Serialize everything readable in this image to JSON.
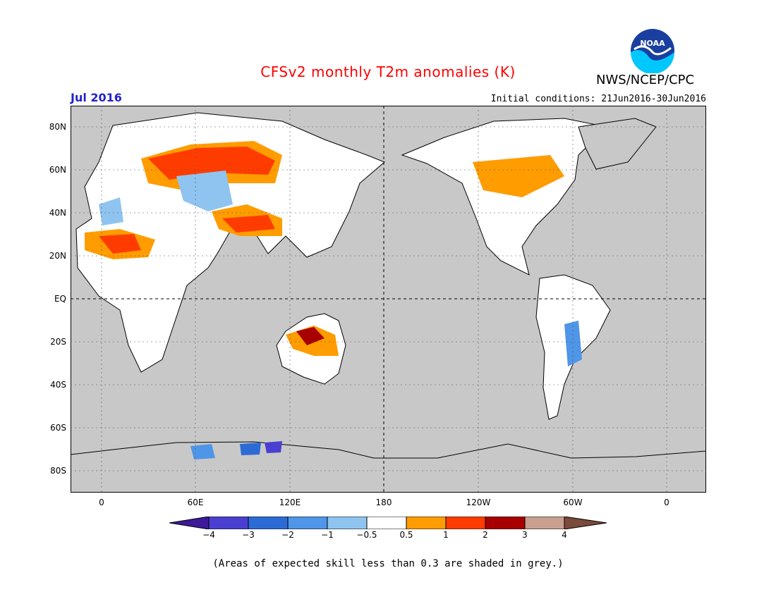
{
  "title": "CFSv2 monthly T2m anomalies (K)",
  "agency": "NWS/NCEP/CPC",
  "logo_text": "NOAA",
  "month": "Jul 2016",
  "initial_conditions": "Initial conditions: 21Jun2016-30Jun2016",
  "lat_labels": [
    "80N",
    "60N",
    "40N",
    "20N",
    "EQ",
    "20S",
    "40S",
    "60S",
    "80S"
  ],
  "lon_labels": [
    "0",
    "60E",
    "120E",
    "180",
    "120W",
    "60W",
    "0"
  ],
  "colorbar": {
    "labels": [
      "−4",
      "−3",
      "−2",
      "−1",
      "−0.5",
      "0.5",
      "1",
      "2",
      "3",
      "4"
    ],
    "colors": [
      "#3c1a9a",
      "#4a3fd0",
      "#2c6bd6",
      "#4f95e8",
      "#8fc4f0",
      "#ffffff",
      "#ff9c00",
      "#ff3c00",
      "#a80000",
      "#c9a090",
      "#7a4a3a"
    ]
  },
  "footer": "(Areas of expected skill less than 0.3 are shaded in grey.)",
  "colors": {
    "ocean": "#c8c8c8",
    "land": "#ffffff",
    "title": "#ff0000",
    "month": "#2222cc"
  }
}
